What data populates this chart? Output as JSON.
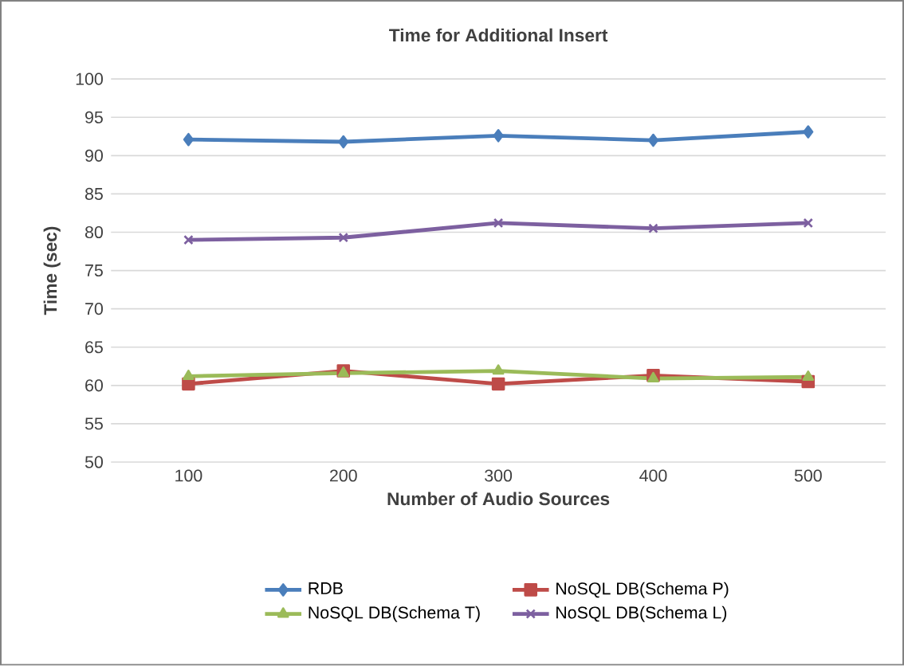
{
  "chart_data": {
    "type": "line",
    "title": "Time for Additional Insert",
    "xlabel": "Number of Audio Sources",
    "ylabel": "Time (sec)",
    "categories": [
      "100",
      "200",
      "300",
      "400",
      "500"
    ],
    "series": [
      {
        "name": "RDB",
        "color": "#4a7ebb",
        "marker": "diamond",
        "values": [
          92.1,
          91.8,
          92.6,
          92.0,
          93.1
        ]
      },
      {
        "name": "NoSQL DB(Schema P)",
        "color": "#be4b48",
        "marker": "square",
        "values": [
          60.2,
          61.9,
          60.2,
          61.3,
          60.5
        ]
      },
      {
        "name": "NoSQL DB(Schema T)",
        "color": "#9bbb59",
        "marker": "triangle",
        "values": [
          61.2,
          61.6,
          61.9,
          60.9,
          61.1
        ]
      },
      {
        "name": "NoSQL DB(Schema L)",
        "color": "#7d60a0",
        "marker": "cross",
        "values": [
          79.0,
          79.3,
          81.2,
          80.5,
          81.2
        ]
      }
    ],
    "ylim": [
      50,
      100
    ],
    "yticks": [
      50,
      55,
      60,
      65,
      70,
      75,
      80,
      85,
      90,
      95,
      100
    ],
    "grid": "y",
    "legend": "bottom",
    "line_style": "solid"
  }
}
